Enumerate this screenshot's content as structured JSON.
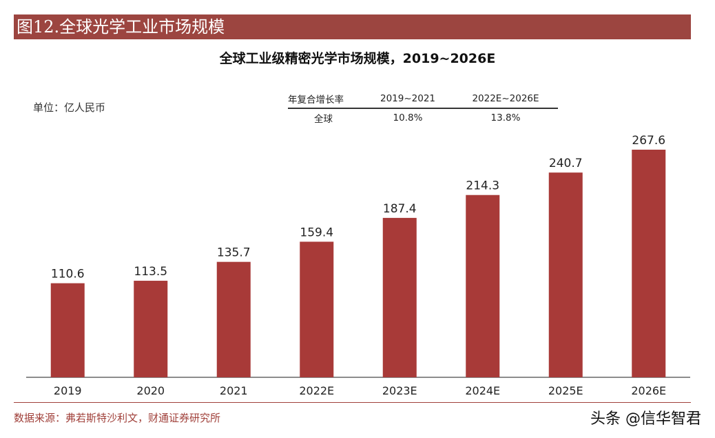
{
  "figure_label": "图12.全球光学工业市场规模",
  "unit_label": "单位：亿人民币",
  "cagr_table": {
    "header": [
      "年复合增长率",
      "2019~2021",
      "2022E~2026E"
    ],
    "rows": [
      [
        "全球",
        "10.8%",
        "13.8%"
      ]
    ]
  },
  "source": "数据来源：弗若斯特沙利文，财通证券研究所",
  "watermark": "头条 @信华智君",
  "colors": {
    "bar": "#a83a38",
    "header_bg": "#9c4540"
  },
  "chart_data": {
    "type": "bar",
    "title": "全球工业级精密光学市场规模，2019~2026E",
    "categories": [
      "2019",
      "2020",
      "2021",
      "2022E",
      "2023E",
      "2024E",
      "2025E",
      "2026E"
    ],
    "values": [
      110.6,
      113.5,
      135.7,
      159.4,
      187.4,
      214.3,
      240.7,
      267.6
    ],
    "xlabel": "",
    "ylabel": "",
    "ylim": [
      0,
      280
    ],
    "grid": false,
    "data_labels": true
  }
}
